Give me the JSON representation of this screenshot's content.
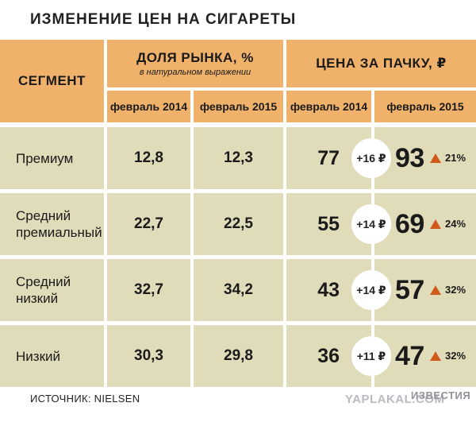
{
  "title": "ИЗМЕНЕНИЕ ЦЕН НА СИГАРЕТЫ",
  "headers": {
    "segment": "СЕГМЕНТ",
    "market_share": "ДОЛЯ РЫНКА, %",
    "market_share_sub": "в натуральном выражении",
    "price": "ЦЕНА ЗА ПАЧКУ, ₽",
    "periods": [
      "февраль 2014",
      "февраль 2015",
      "февраль 2014",
      "февраль 2015"
    ]
  },
  "rows": [
    {
      "segment": "Премиум",
      "share_2014": "12,8",
      "share_2015": "12,3",
      "price_2014": "77",
      "increase": "+16 ₽",
      "price_2015": "93",
      "pct": "21%"
    },
    {
      "segment": "Средний премиальный",
      "share_2014": "22,7",
      "share_2015": "22,5",
      "price_2014": "55",
      "increase": "+14 ₽",
      "price_2015": "69",
      "pct": "24%"
    },
    {
      "segment": "Средний низкий",
      "share_2014": "32,7",
      "share_2015": "34,2",
      "price_2014": "43",
      "increase": "+14 ₽",
      "price_2015": "57",
      "pct": "32%"
    },
    {
      "segment": "Низкий",
      "share_2014": "30,3",
      "share_2015": "29,8",
      "price_2014": "36",
      "increase": "+11 ₽",
      "price_2015": "47",
      "pct": "32%"
    }
  ],
  "colors": {
    "header": "#f0b26b",
    "body": "#e0dbb9",
    "arrow": "#d05a1a"
  },
  "source": "ИСТОЧНИК: NIELSEN",
  "watermark": "YAPLAKAL.COM",
  "watermark2": "ИЗВЕСТИЯ"
}
